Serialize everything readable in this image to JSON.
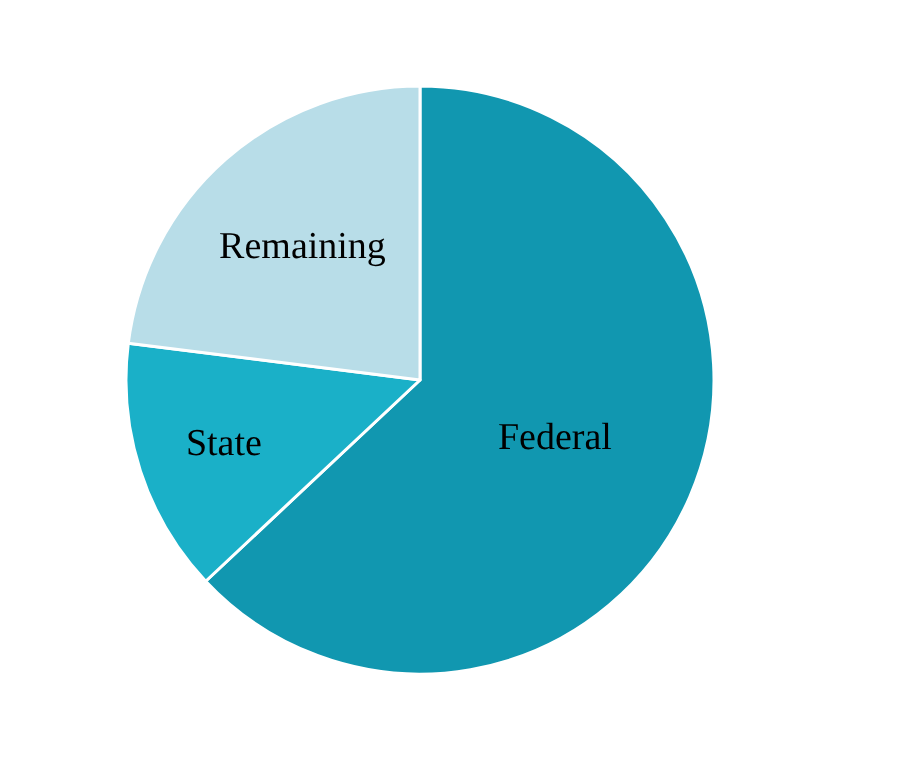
{
  "chart_data": {
    "type": "pie",
    "categories": [
      "Federal",
      "State",
      "Remaining"
    ],
    "values": [
      63,
      14,
      23
    ],
    "colors": [
      "#1197b0",
      "#1ab0c8",
      "#b8dde8"
    ],
    "legend": false
  }
}
